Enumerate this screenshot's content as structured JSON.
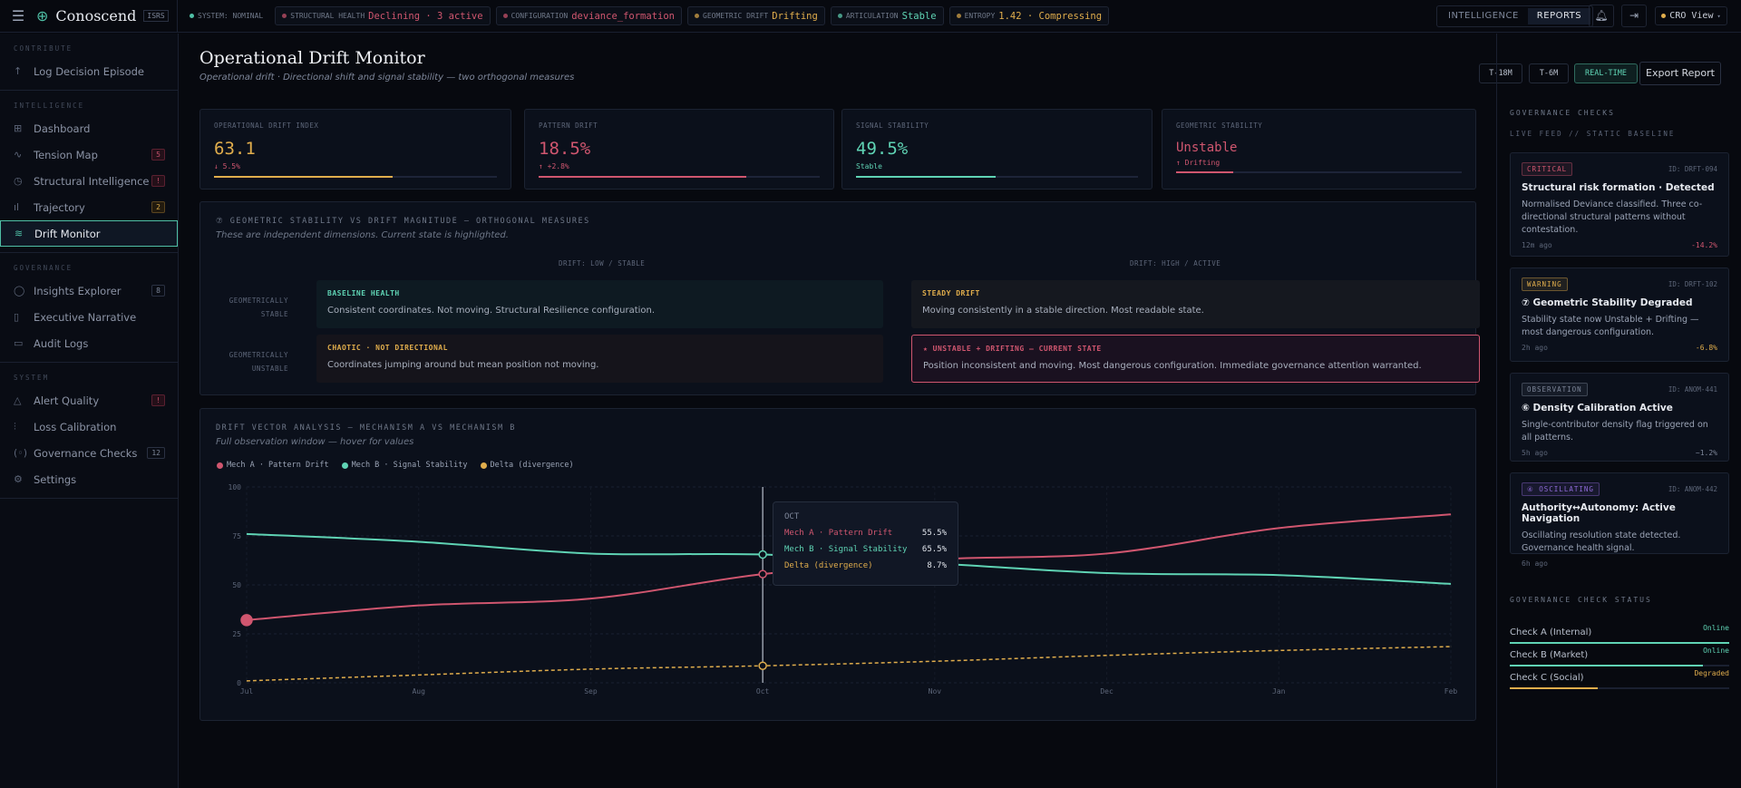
{
  "topbar": {
    "brand": "Conoscend",
    "brand_tag": "ISRS",
    "system": "SYSTEM: NOMINAL",
    "chips": [
      {
        "label": "STRUCTURAL HEALTH",
        "value": "Declining · 3 active",
        "color": "#d0566f"
      },
      {
        "label": "CONFIGURATION",
        "value": "deviance_formation",
        "color": "#d0566f"
      },
      {
        "label": "GEOMETRIC DRIFT",
        "value": "Drifting",
        "color": "#e0ad4c"
      },
      {
        "label": "ARTICULATION",
        "value": "Stable",
        "color": "#5fd3b4"
      },
      {
        "label": "ENTROPY",
        "value": "1.42 · Compressing",
        "color": "#e0ad4c"
      }
    ],
    "tabs": [
      "INTELLIGENCE",
      "REPORTS"
    ],
    "active_tab": "REPORTS",
    "view": "CRO View"
  },
  "sidebar": {
    "sections": [
      {
        "title": "CONTRIBUTE",
        "items": [
          {
            "label": "Log Decision Episode",
            "icon": "↑"
          }
        ]
      },
      {
        "title": "INTELLIGENCE",
        "items": [
          {
            "label": "Dashboard",
            "icon": "⊞"
          },
          {
            "label": "Tension Map",
            "icon": "∿",
            "badge": "5"
          },
          {
            "label": "Structural Intelligence",
            "icon": "◷",
            "badge": "!"
          },
          {
            "label": "Trajectory",
            "icon": "ıl",
            "badge": "2"
          },
          {
            "label": "Drift Monitor",
            "icon": "≋",
            "active": true
          }
        ]
      },
      {
        "title": "GOVERNANCE",
        "items": [
          {
            "label": "Insights Explorer",
            "icon": "◯",
            "badge": "8"
          },
          {
            "label": "Executive Narrative",
            "icon": "▯"
          },
          {
            "label": "Audit Logs",
            "icon": "▭"
          }
        ]
      },
      {
        "title": "SYSTEM",
        "items": [
          {
            "label": "Alert Quality",
            "icon": "△",
            "badge": "!"
          },
          {
            "label": "Loss Calibration",
            "icon": "⫶"
          },
          {
            "label": "Governance Checks",
            "icon": "(◦)",
            "badge": "12"
          },
          {
            "label": "Settings",
            "icon": "⚙"
          }
        ]
      }
    ]
  },
  "page": {
    "title": "Operational Drift Monitor",
    "subtitle": "Operational drift · Directional shift and signal stability — two orthogonal measures",
    "time_buttons": [
      "T-18M",
      "T-6M",
      "REAL-TIME"
    ],
    "active_time": "REAL-TIME",
    "export": "Export Report"
  },
  "stats": [
    {
      "label": "OPERATIONAL DRIFT INDEX",
      "value": "63.1",
      "delta": "↓ 5.5%",
      "color": "#e0ad4c",
      "delta_color": "#d0566f",
      "progress": 0.631
    },
    {
      "label": "PATTERN DRIFT",
      "value": "18.5%",
      "delta": "↑ +2.8%",
      "color": "#d0566f",
      "delta_color": "#d0566f",
      "progress": 0.74
    },
    {
      "label": "SIGNAL STABILITY",
      "value": "49.5%",
      "delta": "Stable",
      "color": "#5fd3b4",
      "delta_color": "#5fd3b4",
      "progress": 0.495
    },
    {
      "label": "GEOMETRIC STABILITY",
      "value": "Unstable",
      "delta": "↑ Drifting",
      "color": "#d0566f",
      "delta_color": "#d0566f",
      "progress": 0.2
    }
  ],
  "matrix": {
    "title": "⑦ GEOMETRIC STABILITY VS DRIFT MAGNITUDE — ORTHOGONAL MEASURES",
    "subtitle": "These are independent dimensions. Current state is highlighted.",
    "cols": [
      "DRIFT: LOW / STABLE",
      "DRIFT: HIGH / ACTIVE"
    ],
    "rows": [
      "GEOMETRICALLY STABLE",
      "GEOMETRICALLY UNSTABLE"
    ],
    "cells": [
      {
        "title": "BASELINE HEALTH",
        "desc": "Consistent coordinates. Not moving. Structural Resilience configuration.",
        "color": "#5fd3b4"
      },
      {
        "title": "STEADY DRIFT",
        "desc": "Moving consistently in a stable direction. Most readable state.",
        "color": "#e0ad4c"
      },
      {
        "title": "CHAOTIC · NOT DIRECTIONAL",
        "desc": "Coordinates jumping around but mean position not moving.",
        "color": "#e0ad4c"
      },
      {
        "title": "★ UNSTABLE + DRIFTING — CURRENT STATE",
        "desc": "Position inconsistent and moving. Most dangerous configuration. Immediate governance attention warranted.",
        "color": "#d0566f"
      }
    ]
  },
  "chart_data": {
    "type": "line",
    "title": "DRIFT VECTOR ANALYSIS — MECHANISM A VS MECHANISM B",
    "subtitle": "Full observation window — hover for values",
    "categories": [
      "Jul",
      "Aug",
      "Sep",
      "Oct",
      "Nov",
      "Dec",
      "Jan",
      "Feb"
    ],
    "ylim": [
      0,
      100
    ],
    "yticks": [
      0,
      25,
      50,
      75,
      100
    ],
    "grid": true,
    "legend": "top-left",
    "series": [
      {
        "name": "Mech A · Pattern Drift",
        "color": "#d0566f",
        "values": [
          32,
          39.5,
          43,
          55.5,
          63,
          66,
          79,
          86
        ]
      },
      {
        "name": "Mech B · Signal Stability",
        "color": "#5fd3b4",
        "values": [
          76,
          72,
          66,
          65.5,
          61,
          56,
          55,
          50.5
        ]
      },
      {
        "name": "Delta (divergence)",
        "color": "#e0ad4c",
        "dashed": true,
        "values": [
          1,
          4,
          7,
          8.7,
          11,
          14,
          16.5,
          18.5
        ]
      }
    ],
    "tooltip": {
      "category": "OCT",
      "rows": [
        {
          "name": "Mech A · Pattern Drift",
          "value": "55.5%"
        },
        {
          "name": "Mech B · Signal Stability",
          "value": "65.5%"
        },
        {
          "name": "Delta (divergence)",
          "value": "8.7%"
        }
      ]
    }
  },
  "right": {
    "title": "GOVERNANCE CHECKS",
    "subtitle": "LIVE FEED // STATIC BASELINE",
    "alerts": [
      {
        "level": "CRITICAL",
        "id": "ID: DRFT-094",
        "title": "Structural risk formation · Detected",
        "desc": "Normalised Deviance classified. Three co-directional structural patterns without contestation.",
        "time": "12m ago",
        "delta": "-14.2%",
        "color": "#d0566f"
      },
      {
        "level": "WARNING",
        "id": "ID: DRFT-102",
        "title": "⑦ Geometric Stability Degraded",
        "desc": "Stability state now Unstable + Drifting — most dangerous configuration.",
        "time": "2h ago",
        "delta": "-6.8%",
        "color": "#e0ad4c"
      },
      {
        "level": "OBSERVATION",
        "id": "ID: ANOM-441",
        "title": "⑥ Density Calibration Active",
        "desc": "Single-contributor density flag triggered on all patterns.",
        "time": "5h ago",
        "delta": "~1.2%",
        "color": "#7d8699"
      },
      {
        "level": "④ OSCILLATING",
        "id": "ID: ANOM-442",
        "title": "Authority↔Autonomy: Active Navigation",
        "desc": "Oscillating resolution state detected. Governance health signal.",
        "time": "6h ago",
        "delta": "",
        "color": "#8f6ad8"
      }
    ],
    "status_title": "GOVERNANCE CHECK STATUS",
    "checks": [
      {
        "name": "Check A (Internal)",
        "status": "Online",
        "color": "#5fd3b4",
        "level": 1.0
      },
      {
        "name": "Check B (Market)",
        "status": "Online",
        "color": "#5fd3b4",
        "level": 0.88
      },
      {
        "name": "Check C (Social)",
        "status": "Degraded",
        "color": "#e0ad4c",
        "level": 0.4
      }
    ]
  }
}
